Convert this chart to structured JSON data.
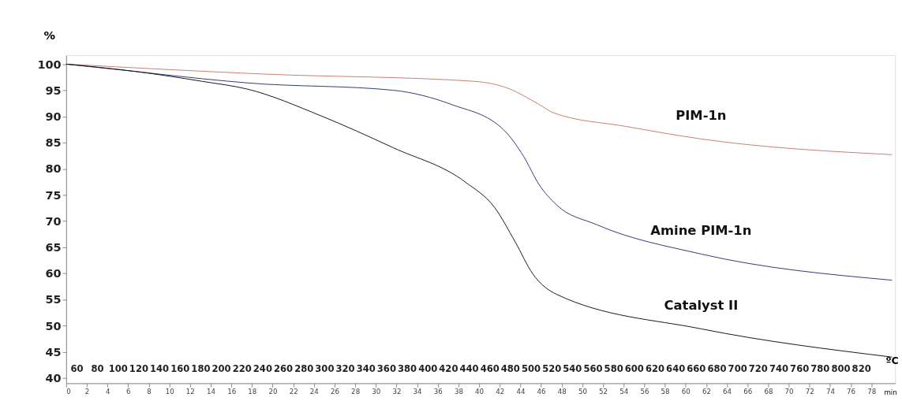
{
  "chart_data": {
    "type": "line",
    "xlabel": "min",
    "x2label": "ºC",
    "ylabel": "%",
    "xlim": [
      0,
      80.3
    ],
    "xticks": [
      0,
      2,
      4,
      6,
      8,
      10,
      12,
      14,
      16,
      18,
      20,
      22,
      24,
      26,
      28,
      30,
      32,
      34,
      36,
      38,
      40,
      42,
      44,
      46,
      48,
      50,
      52,
      54,
      56,
      58,
      60,
      62,
      64,
      66,
      68,
      70,
      72,
      74,
      76,
      78
    ],
    "x2lim": [
      50,
      853
    ],
    "x2ticks": [
      60,
      80,
      100,
      120,
      140,
      160,
      180,
      200,
      220,
      240,
      260,
      280,
      300,
      320,
      340,
      360,
      380,
      400,
      420,
      440,
      460,
      480,
      500,
      520,
      540,
      560,
      580,
      600,
      620,
      640,
      660,
      680,
      700,
      720,
      740,
      760,
      780,
      800,
      820
    ],
    "ylim": [
      39,
      101.7
    ],
    "yticks": [
      40,
      45,
      50,
      55,
      60,
      65,
      70,
      75,
      80,
      85,
      90,
      95,
      100
    ],
    "grid": false,
    "legend": false,
    "marker": "none",
    "line_style": "solid",
    "series": [
      {
        "name": "PIM-1n",
        "color": "#c87a6e",
        "x": [
          0,
          19.1,
          39.6,
          42.9,
          45.8,
          47.2,
          54.2,
          61.5,
          80
        ],
        "values": [
          100,
          98.1,
          96.7,
          95.3,
          92.3,
          90.7,
          88.1,
          85.7,
          82.7
        ]
      },
      {
        "name": "Amine PIM-1n",
        "color": "#2a3470",
        "x": [
          0,
          6.7,
          13.2,
          17.6,
          31.7,
          37.3,
          42.4,
          44.3,
          45.8,
          47.5,
          51.4,
          61.5,
          80
        ],
        "values": [
          100,
          98.6,
          97.2,
          96.4,
          95.0,
          92.3,
          87.4,
          82.4,
          77.0,
          73.1,
          69.3,
          63.7,
          58.7
        ]
      },
      {
        "name": "Catalyst II",
        "color": "#111111",
        "x": [
          0,
          6.7,
          13.2,
          17.6,
          24.7,
          31.7,
          38.7,
          41.5,
          43.5,
          45.2,
          47.5,
          61.5,
          80
        ],
        "values": [
          100,
          98.6,
          96.7,
          95.2,
          90.1,
          84.0,
          77.4,
          72.6,
          66.0,
          59.9,
          56.0,
          49.4,
          44.0
        ]
      }
    ]
  }
}
